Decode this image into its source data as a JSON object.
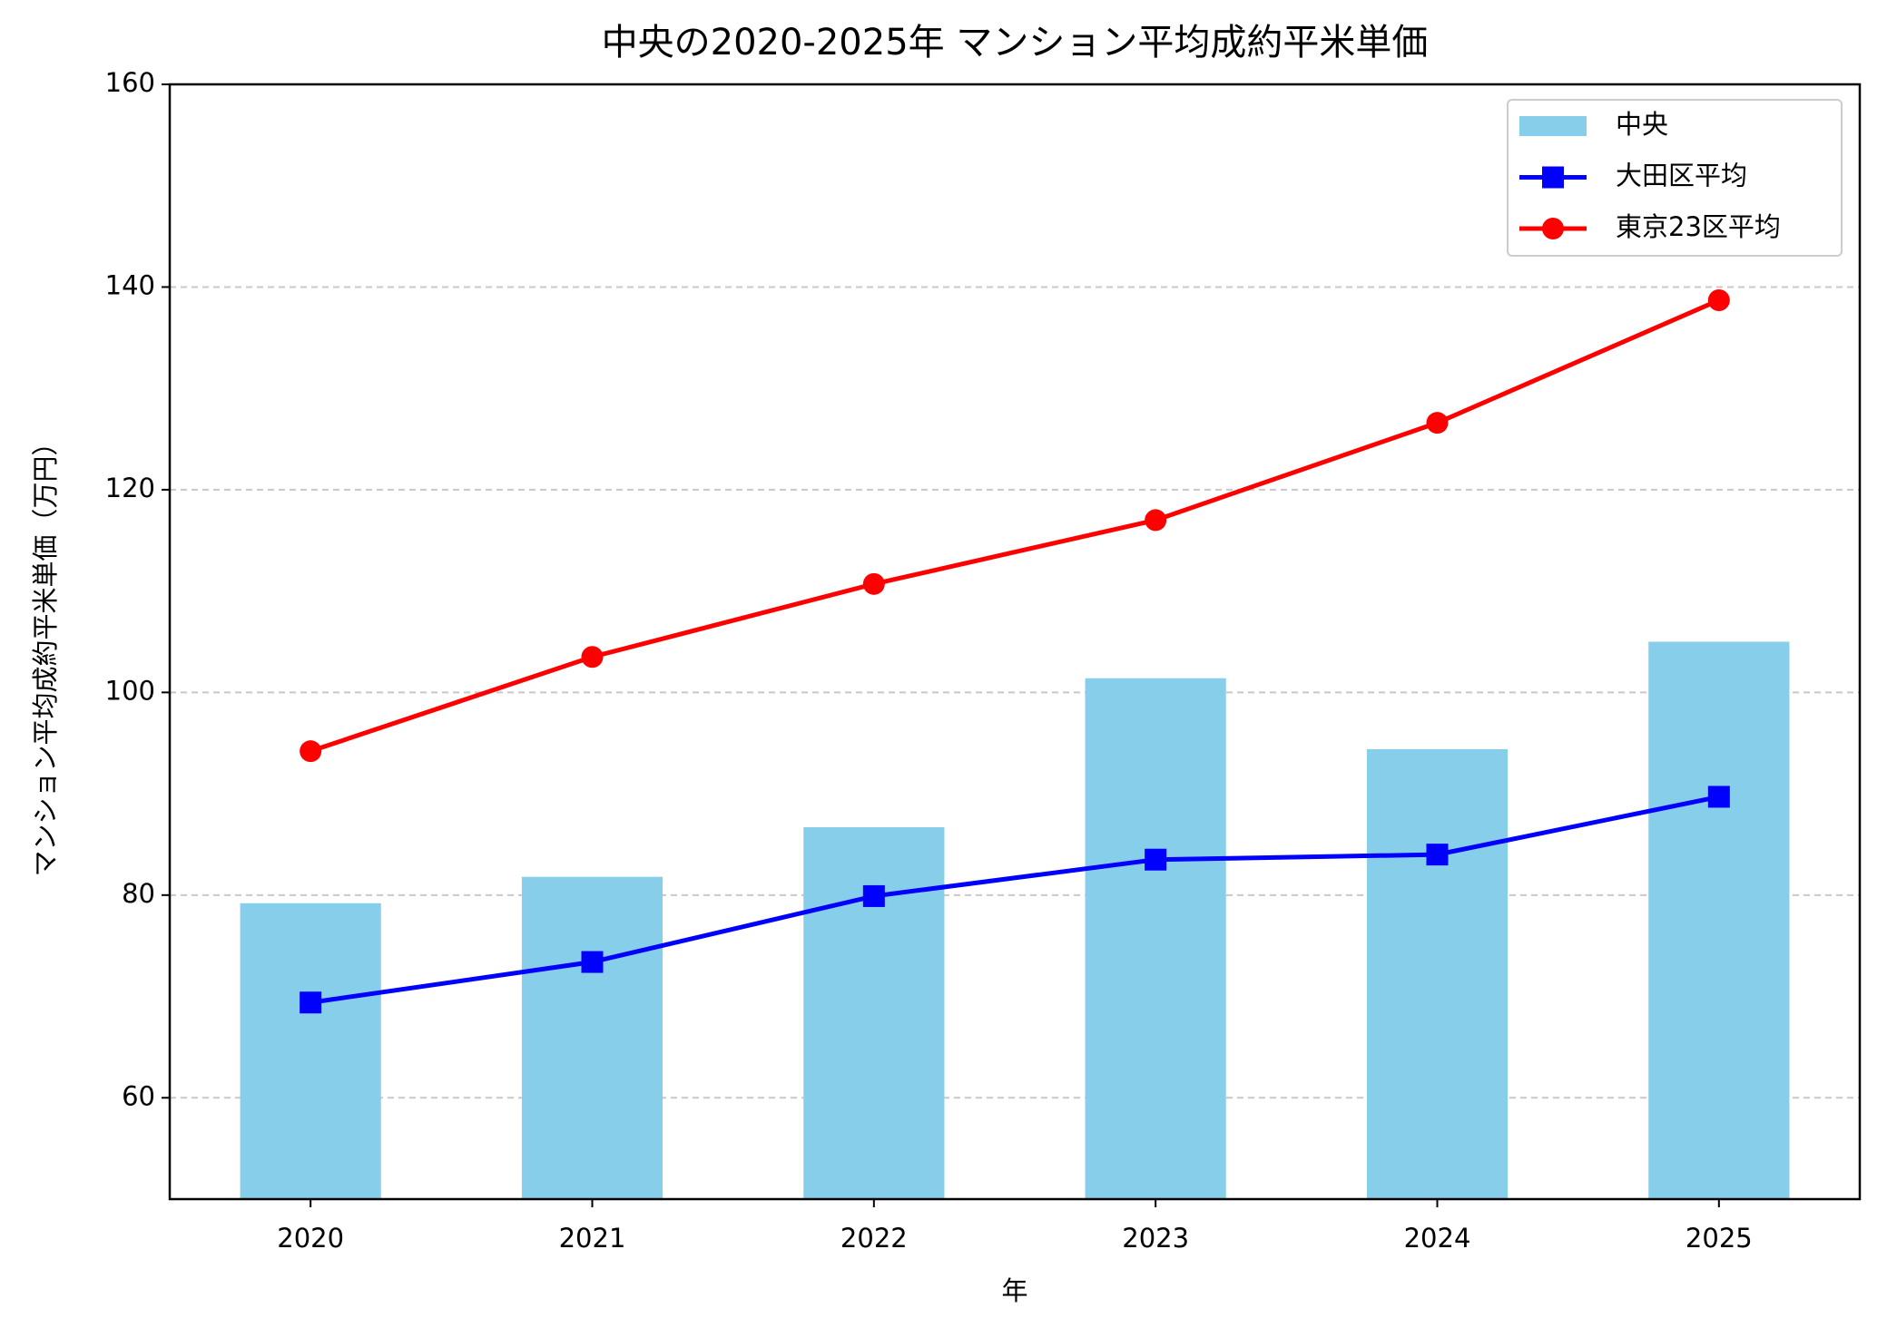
{
  "chart_data": {
    "type": "bar",
    "title": "中央の2020-2025年 マンション平均成約平米単価",
    "xlabel": "年",
    "ylabel": "マンション平均成約平米単価（万円）",
    "categories": [
      "2020",
      "2021",
      "2022",
      "2023",
      "2024",
      "2025"
    ],
    "series": [
      {
        "name": "中央",
        "type": "bar",
        "color": "#87ceeb",
        "values": [
          79.2,
          81.8,
          86.7,
          101.4,
          94.4,
          105.0
        ]
      },
      {
        "name": "大田区平均",
        "type": "line",
        "marker": "square",
        "color": "#0000ff",
        "values": [
          69.4,
          73.4,
          79.9,
          83.5,
          84.0,
          89.7
        ]
      },
      {
        "name": "東京23区平均",
        "type": "line",
        "marker": "circle",
        "color": "#ff0000",
        "values": [
          94.2,
          103.5,
          110.7,
          117.0,
          126.6,
          138.7
        ]
      }
    ],
    "ylim": [
      50,
      160
    ],
    "yticks": [
      60,
      80,
      100,
      120,
      140,
      160
    ],
    "grid": true,
    "legend": "upper right"
  }
}
